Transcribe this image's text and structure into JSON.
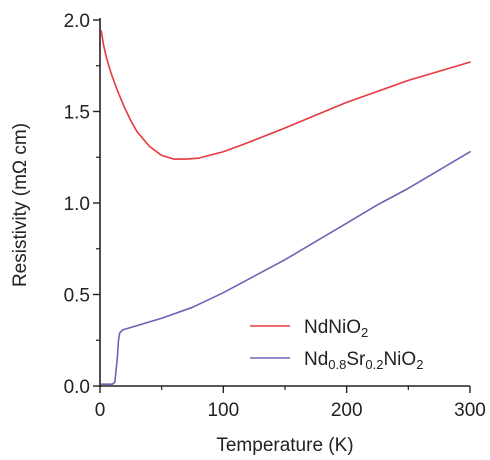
{
  "chart_data": {
    "type": "line",
    "xlabel": "Temperature (K)",
    "ylabel": "Resistivity (mΩ cm)",
    "xlim": [
      0,
      300
    ],
    "ylim": [
      0,
      2.0
    ],
    "x_ticks": [
      0,
      100,
      200,
      300
    ],
    "x_tick_labels": [
      "0",
      "100",
      "200",
      "300"
    ],
    "y_ticks": [
      0,
      0.5,
      1.0,
      1.5,
      2.0
    ],
    "y_tick_labels": [
      "0.0",
      "0.5",
      "1.0",
      "1.5",
      "2.0"
    ],
    "grid": false,
    "legend_position": "bottom-right",
    "series": [
      {
        "name": "NdNiO2",
        "legend_parts": [
          {
            "text": "NdNiO",
            "sub": false
          },
          {
            "text": "2",
            "sub": true
          }
        ],
        "color": "#e8383d",
        "x": [
          1,
          3,
          5,
          8,
          10,
          15,
          20,
          25,
          30,
          40,
          50,
          60,
          70,
          80,
          100,
          120,
          150,
          175,
          200,
          225,
          250,
          275,
          300
        ],
        "y": [
          1.94,
          1.86,
          1.8,
          1.73,
          1.69,
          1.6,
          1.52,
          1.45,
          1.39,
          1.31,
          1.26,
          1.24,
          1.24,
          1.245,
          1.28,
          1.33,
          1.41,
          1.48,
          1.55,
          1.61,
          1.67,
          1.72,
          1.77
        ]
      },
      {
        "name": "Nd0.8Sr0.2NiO2",
        "legend_parts": [
          {
            "text": "Nd",
            "sub": false
          },
          {
            "text": "0.8",
            "sub": true
          },
          {
            "text": "Sr",
            "sub": false
          },
          {
            "text": "0.2",
            "sub": true
          },
          {
            "text": "NiO",
            "sub": false
          },
          {
            "text": "2",
            "sub": true
          }
        ],
        "color": "#6b63b5",
        "x": [
          1,
          5,
          10,
          12,
          14,
          15,
          16,
          18,
          20,
          30,
          50,
          75,
          100,
          125,
          150,
          175,
          200,
          225,
          250,
          275,
          300
        ],
        "y": [
          0.01,
          0.01,
          0.01,
          0.02,
          0.15,
          0.25,
          0.29,
          0.305,
          0.31,
          0.33,
          0.37,
          0.43,
          0.51,
          0.6,
          0.69,
          0.79,
          0.89,
          0.99,
          1.08,
          1.18,
          1.28
        ]
      }
    ]
  }
}
